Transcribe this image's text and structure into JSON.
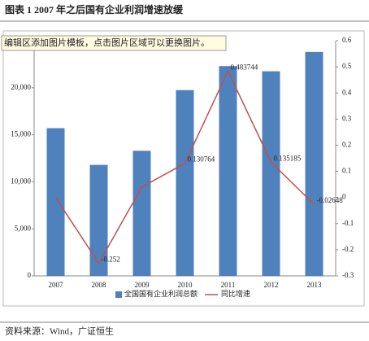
{
  "title": "图表 1 2007 年之后国有企业利润增速放缓",
  "overlay": "编辑区添加图片模板，点击图片区域可以更换图片。",
  "source": "资料来源：Wind，广证恒生",
  "chart_data": {
    "type": "bar-line",
    "categories": [
      "2007",
      "2008",
      "2009",
      "2010",
      "2011",
      "2012",
      "2013"
    ],
    "series": [
      {
        "name": "全国国有企业利润总额",
        "color": "#4f81bd",
        "type": "bar",
        "values": [
          15700,
          11800,
          13300,
          19750,
          22300,
          21750,
          23800
        ]
      },
      {
        "name": "同比增速",
        "color": "#c0504d",
        "type": "line",
        "axis": "y2",
        "values": [
          0,
          -0.252,
          0.04,
          0.130764,
          0.483744,
          0.135185,
          -0.02648
        ],
        "value_labels": [
          null,
          "-0.252",
          null,
          "0.130764",
          "0.483744",
          "0.135185",
          "-0.02648"
        ]
      }
    ],
    "ylim": [
      0,
      25000
    ],
    "yticks": [
      0,
      {
        "value": 5000,
        "label": "5,000"
      },
      {
        "value": 10000,
        "label": "10,000"
      },
      {
        "value": 15000,
        "label": "15,000"
      },
      {
        "value": 20000,
        "label": "20,000"
      }
    ],
    "y2lim": [
      -0.3,
      0.6
    ],
    "y2ticks": [
      -0.3,
      -0.2,
      -0.1,
      0,
      0.1,
      0.2,
      0.3,
      0.4,
      0.5,
      0.6
    ]
  }
}
